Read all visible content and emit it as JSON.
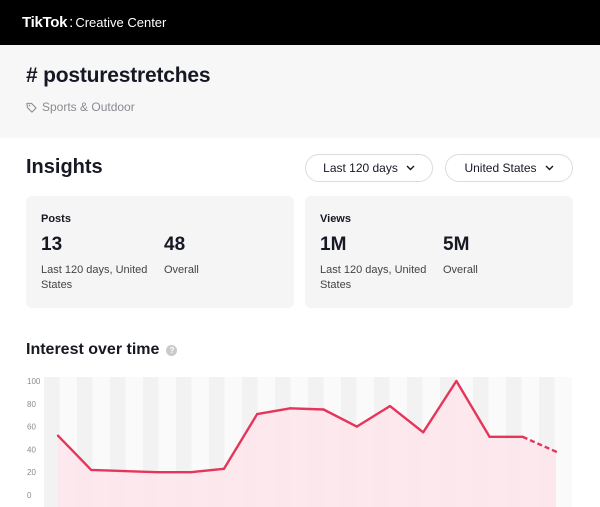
{
  "header": {
    "brand": "TikTok",
    "separator": ":",
    "product": "Creative Center"
  },
  "hashtag": {
    "title": "# posturestretches",
    "category": "Sports & Outdoor",
    "category_icon": "tag-icon"
  },
  "insights": {
    "title": "Insights",
    "period_dropdown": "Last 120 days",
    "region_dropdown": "United States",
    "posts": {
      "title": "Posts",
      "recent_value": "13",
      "recent_label": "Last 120 days, United States",
      "overall_value": "48",
      "overall_label": "Overall"
    },
    "views": {
      "title": "Views",
      "recent_value": "1M",
      "recent_label": "Last 120 days, United States",
      "overall_value": "5M",
      "overall_label": "Overall"
    }
  },
  "interest": {
    "title": "Interest over time",
    "help_icon": "help-icon"
  },
  "colors": {
    "line": "#e6355a",
    "fill": "#fde6ec",
    "band": "#f2f2f3"
  },
  "chart_data": {
    "type": "area",
    "y_ticks": [
      "100",
      "80",
      "60",
      "40",
      "20",
      "0"
    ],
    "ylim": [
      0,
      100
    ],
    "values": [
      52,
      22,
      21,
      20,
      20,
      23,
      71,
      76,
      75,
      60,
      78,
      55,
      100,
      51,
      51,
      38
    ],
    "dashed_from_index": 14,
    "grid": true
  }
}
